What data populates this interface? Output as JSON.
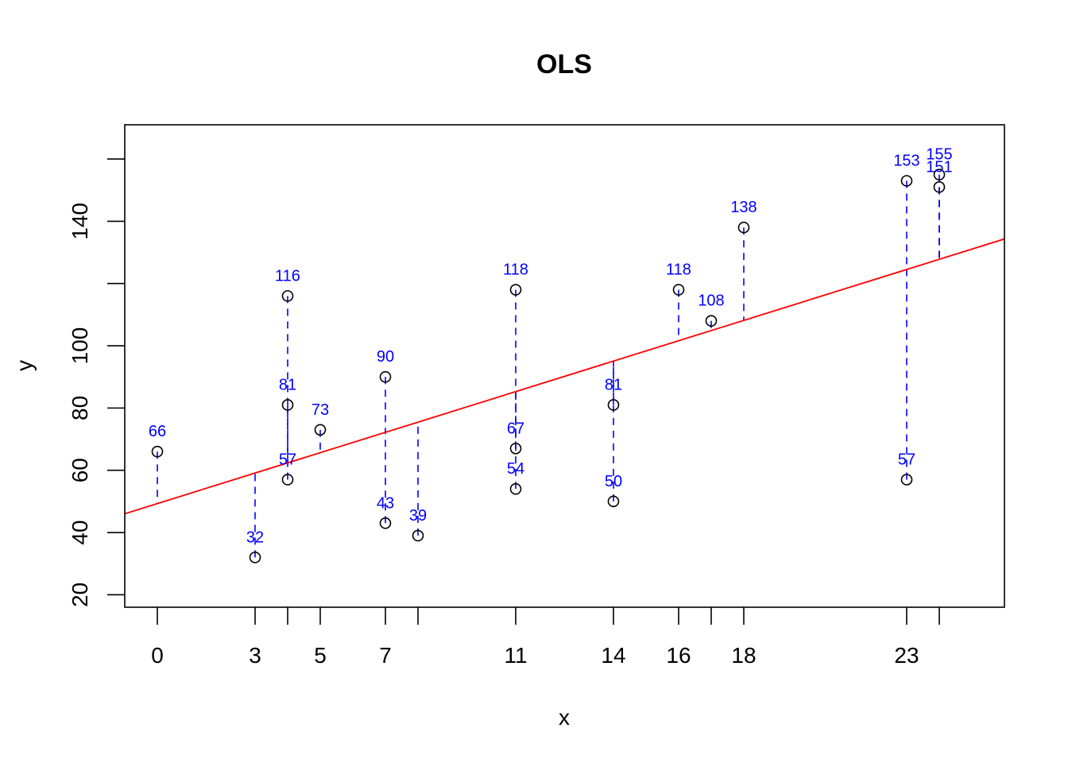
{
  "chart_data": {
    "type": "scatter",
    "title": "OLS",
    "xlabel": "x",
    "ylabel": "y",
    "xlim": [
      -1,
      26
    ],
    "ylim": [
      16,
      171
    ],
    "x_ticks": [
      0,
      3,
      4,
      5,
      7,
      8,
      11,
      14,
      16,
      17,
      18,
      23,
      24
    ],
    "x_tick_labels": [
      "0",
      "3",
      "",
      "5",
      "7",
      "",
      "11",
      "14",
      "16",
      "",
      "18",
      "23",
      ""
    ],
    "y_ticks": [
      20,
      40,
      60,
      80,
      100,
      120,
      140,
      160
    ],
    "y_tick_labels": [
      "20",
      "40",
      "60",
      "80",
      "100",
      "",
      "140",
      ""
    ],
    "grid": false,
    "fit_line": {
      "intercept": 49.3,
      "slope": 3.27,
      "color": "#ff0000"
    },
    "residual_color": "#0000ff",
    "label_color": "#0000ff",
    "points": [
      {
        "x": 0,
        "y": 66,
        "label": "66"
      },
      {
        "x": 3,
        "y": 32,
        "label": "32"
      },
      {
        "x": 4,
        "y": 116,
        "label": "116"
      },
      {
        "x": 4,
        "y": 81,
        "label": "81"
      },
      {
        "x": 4,
        "y": 57,
        "label": "57"
      },
      {
        "x": 5,
        "y": 73,
        "label": "73"
      },
      {
        "x": 7,
        "y": 90,
        "label": "90"
      },
      {
        "x": 7,
        "y": 43,
        "label": "43"
      },
      {
        "x": 8,
        "y": 39,
        "label": "39"
      },
      {
        "x": 11,
        "y": 118,
        "label": "118"
      },
      {
        "x": 11,
        "y": 67,
        "label": "67"
      },
      {
        "x": 11,
        "y": 54,
        "label": "54"
      },
      {
        "x": 14,
        "y": 81,
        "label": "81"
      },
      {
        "x": 14,
        "y": 50,
        "label": "50"
      },
      {
        "x": 16,
        "y": 118,
        "label": "118"
      },
      {
        "x": 17,
        "y": 108,
        "label": "108"
      },
      {
        "x": 18,
        "y": 138,
        "label": "138"
      },
      {
        "x": 23,
        "y": 153,
        "label": "153"
      },
      {
        "x": 23,
        "y": 57,
        "label": "57"
      },
      {
        "x": 24,
        "y": 155,
        "label": "155"
      },
      {
        "x": 24,
        "y": 151,
        "label": "151"
      }
    ]
  }
}
